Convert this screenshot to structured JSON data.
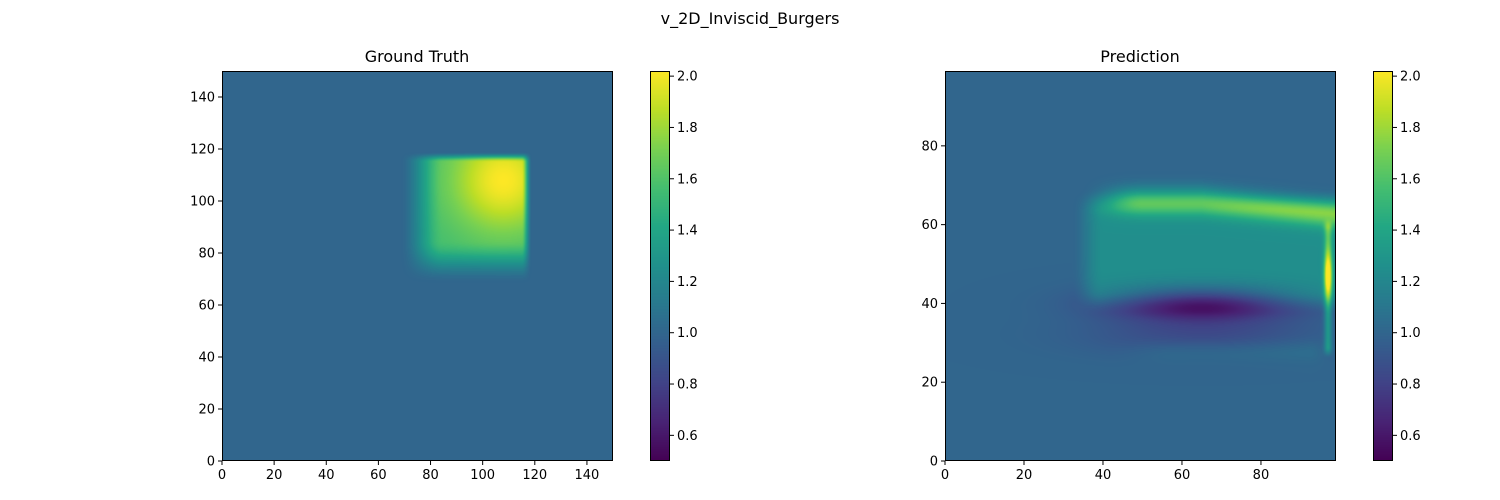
{
  "figure": {
    "suptitle": "v_2D_Inviscid_Burgers"
  },
  "chart_data": [
    {
      "type": "heatmap",
      "title": "Ground Truth",
      "xlabel": "",
      "ylabel": "",
      "xlim": [
        0,
        150
      ],
      "ylim": [
        0,
        150
      ],
      "xticks": [
        0,
        20,
        40,
        60,
        80,
        100,
        120,
        140
      ],
      "yticks": [
        0,
        20,
        40,
        60,
        80,
        100,
        120,
        140
      ],
      "colormap": "viridis",
      "background_value": 1.0,
      "colorbar": {
        "vmin": 0.5,
        "vmax": 2.02,
        "ticks": [
          0.6,
          0.8,
          1.0,
          1.2,
          1.4,
          1.6,
          1.8,
          2.0
        ]
      },
      "features": [
        {
          "kind": "square_pulse",
          "x_range": [
            80,
            118
          ],
          "y_range": [
            80,
            118
          ],
          "peak_value": 2.02,
          "peak_at": [
            108,
            108
          ],
          "base_value": 1.55,
          "blur_lower_left": 12,
          "blur_upper_right": 3
        }
      ]
    },
    {
      "type": "heatmap",
      "title": "Prediction",
      "xlabel": "",
      "ylabel": "",
      "xlim": [
        0,
        99
      ],
      "ylim": [
        0,
        99
      ],
      "xticks": [
        0,
        20,
        40,
        60,
        80
      ],
      "yticks": [
        0,
        20,
        40,
        60,
        80
      ],
      "colormap": "viridis",
      "background_value": 1.0,
      "colorbar": {
        "vmin": 0.5,
        "vmax": 2.02,
        "ticks": [
          0.6,
          0.8,
          1.0,
          1.2,
          1.4,
          1.6,
          1.8,
          2.0
        ]
      },
      "features": [
        {
          "kind": "band",
          "x_range": [
            32,
            98
          ],
          "y_range": [
            44,
            62
          ],
          "value": 1.25
        },
        {
          "kind": "arc",
          "x_range": [
            40,
            98
          ],
          "y_center": 66,
          "value": 1.5
        },
        {
          "kind": "dip",
          "center": [
            65,
            40
          ],
          "value": 0.5
        },
        {
          "kind": "dip",
          "center": [
            65,
            32
          ],
          "value": 0.85
        },
        {
          "kind": "edge_spike",
          "x": 97,
          "y_range": [
            26,
            62
          ],
          "peak_value": 2.0,
          "peak_at": 47
        }
      ]
    }
  ]
}
